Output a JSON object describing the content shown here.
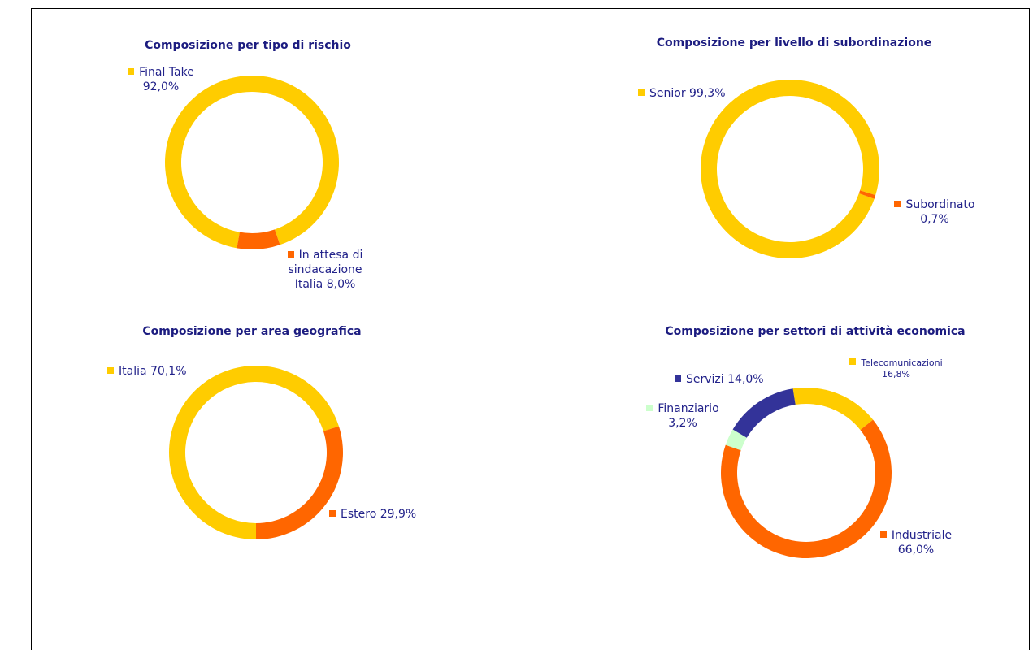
{
  "chart_data": [
    {
      "type": "pie",
      "title": "Composizione per tipo di rischio",
      "categories": [
        "Final Take",
        "In attesa di sindacazione Italia"
      ],
      "values": [
        92.0,
        8.0
      ],
      "value_labels": [
        "92,0%",
        "8,0%"
      ],
      "colors": [
        "#ffcc00",
        "#ff6600"
      ]
    },
    {
      "type": "pie",
      "title": "Composizione per livello di subordinazione",
      "categories": [
        "Senior",
        "Subordinato"
      ],
      "values": [
        99.3,
        0.7
      ],
      "value_labels": [
        "99,3%",
        "0,7%"
      ],
      "colors": [
        "#ffcc00",
        "#ff6600"
      ]
    },
    {
      "type": "pie",
      "title": "Composizione per area geografica",
      "categories": [
        "Italia",
        "Estero"
      ],
      "values": [
        70.1,
        29.9
      ],
      "value_labels": [
        "70,1%",
        "29,9%"
      ],
      "colors": [
        "#ffcc00",
        "#ff6600"
      ]
    },
    {
      "type": "pie",
      "title": "Composizione per settori di attività economica",
      "categories": [
        "Telecomunicazioni",
        "Industriale",
        "Finanziario",
        "Servizi"
      ],
      "values": [
        16.8,
        66.0,
        3.2,
        14.0
      ],
      "value_labels": [
        "16,8%",
        "66,0%",
        "3,2%",
        "14,0%"
      ],
      "colors": [
        "#ffcc00",
        "#ff6600",
        "#ccffcc",
        "#333399"
      ]
    }
  ]
}
